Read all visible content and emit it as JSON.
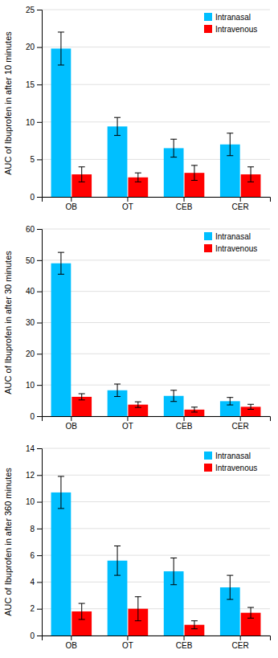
{
  "chart_data": [
    {
      "type": "bar",
      "categories": [
        "OB",
        "OT",
        "CEB",
        "CER"
      ],
      "ylabel": "AUC of Ibuprofen in after 10 minutes",
      "ylim": [
        0,
        25
      ],
      "yticks": [
        0,
        5,
        10,
        15,
        20,
        25
      ],
      "grid": true,
      "legend": "upper right",
      "series": [
        {
          "name": "Intranasal",
          "color": "#00BFFF",
          "values": [
            19.8,
            9.4,
            6.5,
            7.0
          ],
          "errors": [
            2.2,
            1.2,
            1.2,
            1.5
          ]
        },
        {
          "name": "Intravenous",
          "color": "#FF0000",
          "values": [
            3.0,
            2.6,
            3.2,
            3.0
          ],
          "errors": [
            1.0,
            0.6,
            1.0,
            1.0
          ]
        }
      ]
    },
    {
      "type": "bar",
      "categories": [
        "OB",
        "OT",
        "CEB",
        "CER"
      ],
      "ylabel": "AUC of Ibuprofen in after 30 minutes",
      "ylim": [
        0,
        60
      ],
      "yticks": [
        0,
        10,
        20,
        30,
        40,
        50,
        60
      ],
      "grid": true,
      "legend": "upper right",
      "series": [
        {
          "name": "Intranasal",
          "color": "#00BFFF",
          "values": [
            49.0,
            8.3,
            6.5,
            4.8
          ],
          "errors": [
            3.5,
            2.0,
            1.8,
            1.2
          ]
        },
        {
          "name": "Intravenous",
          "color": "#FF0000",
          "values": [
            6.2,
            3.7,
            2.1,
            3.0
          ],
          "errors": [
            1.0,
            0.9,
            0.8,
            0.8
          ]
        }
      ]
    },
    {
      "type": "bar",
      "categories": [
        "OB",
        "OT",
        "CEB",
        "CER"
      ],
      "ylabel": "AUC of Ibuprofen in after 360 minutes",
      "ylim": [
        0,
        14
      ],
      "yticks": [
        0,
        2,
        4,
        6,
        8,
        10,
        12,
        14
      ],
      "grid": true,
      "legend": "upper right",
      "series": [
        {
          "name": "Intranasal",
          "color": "#00BFFF",
          "values": [
            10.7,
            5.6,
            4.8,
            3.6
          ],
          "errors": [
            1.2,
            1.1,
            1.0,
            0.9
          ]
        },
        {
          "name": "Intravenous",
          "color": "#FF0000",
          "values": [
            1.8,
            2.0,
            0.8,
            1.7
          ],
          "errors": [
            0.6,
            0.9,
            0.3,
            0.4
          ]
        }
      ]
    }
  ]
}
